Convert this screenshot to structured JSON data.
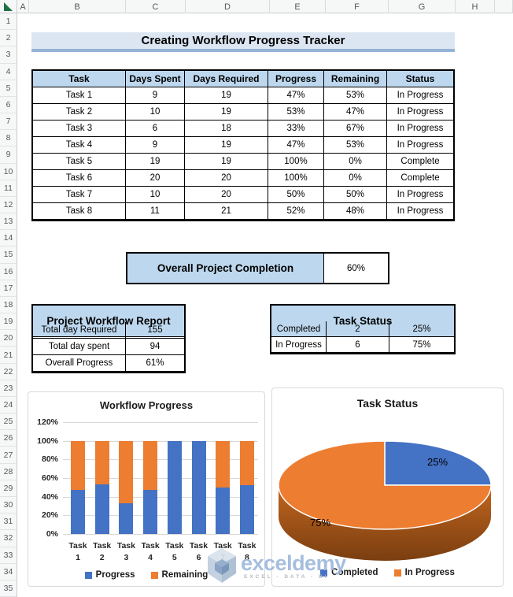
{
  "sheet": {
    "columns": [
      "A",
      "B",
      "C",
      "D",
      "E",
      "F",
      "G",
      "H"
    ],
    "rows": [
      "1",
      "2",
      "3",
      "4",
      "5",
      "6",
      "7",
      "8",
      "9",
      "10",
      "11",
      "12",
      "13",
      "14",
      "15",
      "16",
      "17",
      "18",
      "19",
      "20",
      "21",
      "22",
      "23",
      "24",
      "25",
      "26",
      "27",
      "28",
      "29",
      "30",
      "31",
      "32",
      "33",
      "34",
      "35"
    ]
  },
  "title_banner": {
    "text": "Creating Workflow Progress Tracker"
  },
  "task_table": {
    "headers": [
      "Task",
      "Days Spent",
      "Days Required",
      "Progress",
      "Remaining",
      "Status"
    ],
    "rows": [
      [
        "Task 1",
        "9",
        "19",
        "47%",
        "53%",
        "In Progress"
      ],
      [
        "Task 2",
        "10",
        "19",
        "53%",
        "47%",
        "In Progress"
      ],
      [
        "Task 3",
        "6",
        "18",
        "33%",
        "67%",
        "In Progress"
      ],
      [
        "Task 4",
        "9",
        "19",
        "47%",
        "53%",
        "In Progress"
      ],
      [
        "Task 5",
        "19",
        "19",
        "100%",
        "0%",
        "Complete"
      ],
      [
        "Task 6",
        "20",
        "20",
        "100%",
        "0%",
        "Complete"
      ],
      [
        "Task 7",
        "10",
        "20",
        "50%",
        "50%",
        "In Progress"
      ],
      [
        "Task 8",
        "11",
        "21",
        "52%",
        "48%",
        "In Progress"
      ]
    ]
  },
  "completion": {
    "label": "Overall Project Completion",
    "value": "60%"
  },
  "report_table": {
    "title": "Project Workflow Report",
    "rows": [
      [
        "Total day Required",
        "155"
      ],
      [
        "Total day spent",
        "94"
      ],
      [
        "Overall Progress",
        "61%"
      ]
    ]
  },
  "status_table": {
    "title": "Task Status",
    "rows": [
      [
        "Completed",
        "2",
        "25%"
      ],
      [
        "In Progress",
        "6",
        "75%"
      ]
    ]
  },
  "chart_data": [
    {
      "type": "bar",
      "subtype": "stacked-column",
      "title": "Workflow Progress",
      "categories": [
        "Task 1",
        "Task 2",
        "Task 3",
        "Task 4",
        "Task 5",
        "Task 6",
        "Task 7",
        "Task 8"
      ],
      "series": [
        {
          "name": "Progress",
          "color": "#4472C4",
          "values": [
            47,
            53,
            33,
            47,
            100,
            100,
            50,
            52
          ]
        },
        {
          "name": "Remaining",
          "color": "#ED7D31",
          "values": [
            53,
            47,
            67,
            53,
            0,
            0,
            50,
            48
          ]
        }
      ],
      "ylabel": "",
      "xlabel": "",
      "ylim": [
        0,
        120
      ],
      "ytick_step": 20,
      "ytick_format": "percent",
      "grid": true,
      "legend_position": "bottom"
    },
    {
      "type": "pie",
      "subtype": "3d",
      "title": "Task Status",
      "labels": [
        "Completed",
        "In Progress"
      ],
      "values": [
        25,
        75
      ],
      "colors": [
        "#4472C4",
        "#ED7D31"
      ],
      "data_labels": [
        "25%",
        "75%"
      ],
      "legend_position": "bottom"
    }
  ],
  "watermark": {
    "brand": "exceldemy",
    "tagline": "EXCEL - DATA - BI"
  },
  "colors": {
    "accent_fill": "#BDD7EE",
    "banner_fill": "#DCE6F2",
    "banner_underline": "#95B3D7",
    "series_progress": "#4472C4",
    "series_remaining": "#ED7D31",
    "pie_side_dark": "#7A3E10"
  }
}
